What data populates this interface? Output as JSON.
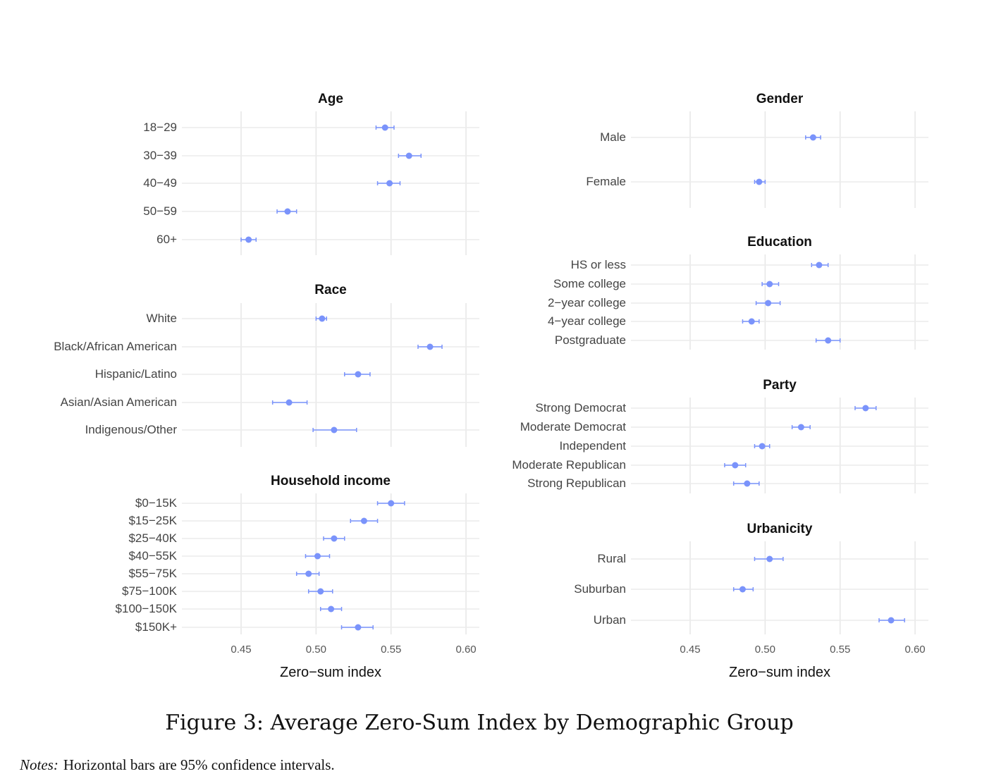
{
  "chart_data": {
    "type": "scatter",
    "subtype": "dot-and-whisker",
    "title": "Figure 3: Average Zero-Sum Index by Demographic Group",
    "notes_label": "Notes:",
    "notes_text": "Horizontal bars are 95% confidence intervals.",
    "xlabel": "Zero−sum index",
    "xticks": [
      "0.45",
      "0.50",
      "0.55",
      "0.60"
    ],
    "xtick_values": [
      0.45,
      0.5,
      0.55,
      0.6
    ],
    "xlim": [
      0.41,
      0.609
    ],
    "color": "#7a93fb",
    "grid": true,
    "panels": [
      {
        "title": "Age",
        "categories": [
          "18−29",
          "30−39",
          "40−49",
          "50−59",
          "60+"
        ],
        "values": [
          0.546,
          0.562,
          0.549,
          0.481,
          0.455
        ],
        "ci_low": [
          0.54,
          0.555,
          0.541,
          0.474,
          0.45
        ],
        "ci_high": [
          0.552,
          0.57,
          0.556,
          0.487,
          0.46
        ]
      },
      {
        "title": "Race",
        "categories": [
          "White",
          "Black/African American",
          "Hispanic/Latino",
          "Asian/Asian American",
          "Indigenous/Other"
        ],
        "values": [
          0.504,
          0.576,
          0.528,
          0.482,
          0.512
        ],
        "ci_low": [
          0.5,
          0.568,
          0.519,
          0.471,
          0.498
        ],
        "ci_high": [
          0.507,
          0.584,
          0.536,
          0.494,
          0.527
        ]
      },
      {
        "title": "Household income",
        "categories": [
          "$0−15K",
          "$15−25K",
          "$25−40K",
          "$40−55K",
          "$55−75K",
          "$75−100K",
          "$100−150K",
          "$150K+"
        ],
        "values": [
          0.55,
          0.532,
          0.512,
          0.501,
          0.495,
          0.503,
          0.51,
          0.528
        ],
        "ci_low": [
          0.541,
          0.523,
          0.505,
          0.493,
          0.487,
          0.495,
          0.503,
          0.517
        ],
        "ci_high": [
          0.559,
          0.541,
          0.519,
          0.509,
          0.502,
          0.511,
          0.517,
          0.538
        ]
      },
      {
        "title": "Gender",
        "categories": [
          "Male",
          "Female"
        ],
        "values": [
          0.532,
          0.496
        ],
        "ci_low": [
          0.527,
          0.493
        ],
        "ci_high": [
          0.537,
          0.5
        ]
      },
      {
        "title": "Education",
        "categories": [
          "HS or less",
          "Some college",
          "2−year college",
          "4−year college",
          "Postgraduate"
        ],
        "values": [
          0.536,
          0.503,
          0.502,
          0.491,
          0.542
        ],
        "ci_low": [
          0.531,
          0.498,
          0.494,
          0.485,
          0.534
        ],
        "ci_high": [
          0.542,
          0.509,
          0.51,
          0.496,
          0.55
        ]
      },
      {
        "title": "Party",
        "categories": [
          "Strong Democrat",
          "Moderate Democrat",
          "Independent",
          "Moderate Republican",
          "Strong Republican"
        ],
        "values": [
          0.567,
          0.524,
          0.498,
          0.48,
          0.488
        ],
        "ci_low": [
          0.56,
          0.518,
          0.493,
          0.473,
          0.479
        ],
        "ci_high": [
          0.574,
          0.53,
          0.503,
          0.487,
          0.496
        ]
      },
      {
        "title": "Urbanicity",
        "categories": [
          "Rural",
          "Suburban",
          "Urban"
        ],
        "values": [
          0.503,
          0.485,
          0.584
        ],
        "ci_low": [
          0.493,
          0.479,
          0.576
        ],
        "ci_high": [
          0.512,
          0.492,
          0.593
        ]
      }
    ]
  }
}
